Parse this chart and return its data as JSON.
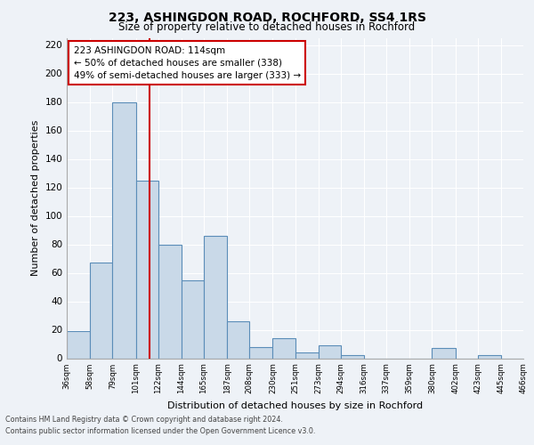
{
  "title1": "223, ASHINGDON ROAD, ROCHFORD, SS4 1RS",
  "title2": "Size of property relative to detached houses in Rochford",
  "xlabel": "Distribution of detached houses by size in Rochford",
  "ylabel": "Number of detached properties",
  "bins": [
    36,
    58,
    79,
    101,
    122,
    144,
    165,
    187,
    208,
    230,
    251,
    273,
    294,
    316,
    337,
    359,
    380,
    402,
    423,
    445,
    466
  ],
  "counts": [
    19,
    67,
    180,
    125,
    80,
    55,
    86,
    26,
    8,
    14,
    4,
    9,
    2,
    0,
    0,
    0,
    7,
    0,
    2,
    0
  ],
  "bar_color": "#c9d9e8",
  "bar_edge_color": "#5b8db8",
  "bar_edge_width": 0.8,
  "red_line_x": 114,
  "ylim": [
    0,
    225
  ],
  "yticks": [
    0,
    20,
    40,
    60,
    80,
    100,
    120,
    140,
    160,
    180,
    200,
    220
  ],
  "annotation_title": "223 ASHINGDON ROAD: 114sqm",
  "annotation_line1": "← 50% of detached houses are smaller (338)",
  "annotation_line2": "49% of semi-detached houses are larger (333) →",
  "annotation_box_color": "#ffffff",
  "annotation_box_edge": "#cc0000",
  "footer1": "Contains HM Land Registry data © Crown copyright and database right 2024.",
  "footer2": "Contains public sector information licensed under the Open Government Licence v3.0.",
  "bg_color": "#eef2f7",
  "grid_color": "#ffffff",
  "tick_labels": [
    "36sqm",
    "58sqm",
    "79sqm",
    "101sqm",
    "122sqm",
    "144sqm",
    "165sqm",
    "187sqm",
    "208sqm",
    "230sqm",
    "251sqm",
    "273sqm",
    "294sqm",
    "316sqm",
    "337sqm",
    "359sqm",
    "380sqm",
    "402sqm",
    "423sqm",
    "445sqm",
    "466sqm"
  ]
}
